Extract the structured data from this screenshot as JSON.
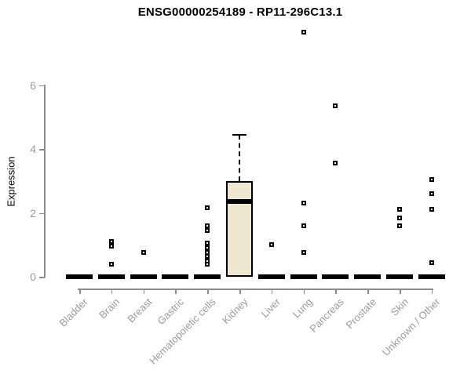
{
  "title": "ENSG00000254189 - RP11-296C13.1",
  "chart_data": {
    "type": "boxplot",
    "title": "ENSG00000254189 - RP11-296C13.1",
    "xlabel": "",
    "ylabel": "Expression",
    "ylim": [
      0,
      6
    ],
    "yticks": [
      0,
      2,
      4,
      6
    ],
    "grid": false,
    "legend": "none",
    "categories": [
      "Bladder",
      "Brain",
      "Breast",
      "Gastric",
      "Hematopoietic cells",
      "Kidney",
      "Liver",
      "Lung",
      "Pancreas",
      "Prostate",
      "Skin",
      "Unknown / Other"
    ],
    "series": [
      {
        "category": "Bladder",
        "whisker_low": 0,
        "q1": 0,
        "median": 0,
        "q3": 0,
        "whisker_high": 0,
        "outliers": []
      },
      {
        "category": "Brain",
        "whisker_low": 0,
        "q1": 0,
        "median": 0,
        "q3": 0,
        "whisker_high": 0,
        "outliers": [
          1.1,
          0.95,
          0.4
        ]
      },
      {
        "category": "Breast",
        "whisker_low": 0,
        "q1": 0,
        "median": 0,
        "q3": 0,
        "whisker_high": 0,
        "outliers": [
          0.75
        ]
      },
      {
        "category": "Gastric",
        "whisker_low": 0,
        "q1": 0,
        "median": 0,
        "q3": 0,
        "whisker_high": 0,
        "outliers": []
      },
      {
        "category": "Hematopoietic cells",
        "whisker_low": 0,
        "q1": 0,
        "median": 0,
        "q3": 0,
        "whisker_high": 0,
        "outliers": [
          2.15,
          1.6,
          1.45,
          1.05,
          0.9,
          0.75,
          0.65,
          0.5,
          0.4
        ]
      },
      {
        "category": "Kidney",
        "whisker_low": 0,
        "q1": 0,
        "median": 2.35,
        "q3": 3.0,
        "whisker_high": 4.45,
        "outliers": []
      },
      {
        "category": "Liver",
        "whisker_low": 0,
        "q1": 0,
        "median": 0,
        "q3": 0,
        "whisker_high": 0,
        "outliers": [
          1.0
        ]
      },
      {
        "category": "Lung",
        "whisker_low": 0,
        "q1": 0,
        "median": 0,
        "q3": 0,
        "whisker_high": 0,
        "outliers": [
          7.65,
          2.3,
          1.6,
          0.75
        ]
      },
      {
        "category": "Pancreas",
        "whisker_low": 0,
        "q1": 0,
        "median": 0,
        "q3": 0,
        "whisker_high": 0,
        "outliers": [
          5.35,
          3.55
        ]
      },
      {
        "category": "Prostate",
        "whisker_low": 0,
        "q1": 0,
        "median": 0,
        "q3": 0,
        "whisker_high": 0,
        "outliers": []
      },
      {
        "category": "Skin",
        "whisker_low": 0,
        "q1": 0,
        "median": 0,
        "q3": 0,
        "whisker_high": 0,
        "outliers": [
          2.1,
          1.85,
          1.6
        ]
      },
      {
        "category": "Unknown / Other",
        "whisker_low": 0,
        "q1": 0,
        "median": 0,
        "q3": 0,
        "whisker_high": 0,
        "outliers": [
          3.05,
          2.6,
          2.1,
          0.45
        ]
      }
    ],
    "colors": {
      "box_fill": "#EEE8D1",
      "box_border": "#000000",
      "median": "#000000",
      "axis_line": "#8B8B8B",
      "axis_text": "#9B9B9B",
      "title_text": "#000000",
      "background": "#FFFFFF"
    }
  }
}
